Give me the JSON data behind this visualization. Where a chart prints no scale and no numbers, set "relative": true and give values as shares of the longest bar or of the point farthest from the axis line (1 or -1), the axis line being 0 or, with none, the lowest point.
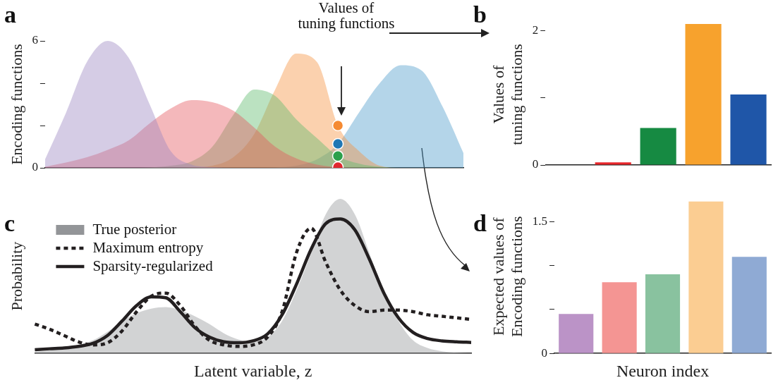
{
  "chart_data": [
    {
      "type": "area",
      "title": "a",
      "ylabel": "Encoding functions",
      "annotations": [
        "Values of\ntuning functions"
      ],
      "categories": [
        null,
        null,
        null,
        null,
        null,
        null,
        null,
        null,
        null,
        null,
        null,
        null,
        null,
        null,
        null,
        null,
        null,
        null,
        null,
        null,
        null
      ],
      "ylim": [
        0,
        6
      ],
      "yticks": [
        0,
        {
          "value": 2,
          "label": null
        },
        {
          "value": 4,
          "label": null
        },
        6
      ],
      "tick_labels": "y",
      "series": [
        {
          "color": "#9a86c0",
          "values": [
            0.4,
            2.6,
            5.0,
            6.0,
            5.2,
            3.0,
            0.8,
            0.15,
            0.03,
            0,
            0,
            0,
            0,
            0,
            0,
            0,
            0,
            0,
            0,
            0,
            0
          ]
        },
        {
          "color": "#e5565e",
          "values": [
            0.05,
            0.25,
            0.5,
            0.85,
            1.3,
            2.1,
            2.8,
            3.2,
            3.1,
            2.7,
            1.9,
            1.0,
            0.45,
            0.15,
            0.03,
            0,
            0,
            0,
            0,
            0,
            0
          ]
        },
        {
          "color": "#5dbb6b",
          "values": [
            0,
            0,
            0,
            0,
            0,
            0.02,
            0.1,
            0.3,
            1.0,
            2.5,
            3.7,
            3.4,
            2.3,
            1.4,
            0.56,
            0.2,
            0.05,
            0,
            0,
            0,
            0
          ]
        },
        {
          "color": "#f6913f",
          "values": [
            0,
            0,
            0,
            0,
            0,
            0,
            0,
            0.02,
            0.1,
            0.5,
            1.6,
            3.7,
            5.4,
            5.0,
            2.0,
            0.8,
            0.1,
            0,
            0,
            0,
            0
          ]
        },
        {
          "color": "#4d9acb",
          "values": [
            0,
            0,
            0,
            0,
            0,
            0,
            0,
            0,
            0,
            0,
            0,
            0.02,
            0.1,
            0.4,
            1.13,
            2.6,
            4.0,
            4.85,
            4.6,
            2.9,
            0.7
          ]
        },
        {
          "type": "scatter",
          "color": "#f58a32",
          "values": [
            null,
            null,
            null,
            null,
            null,
            null,
            null,
            null,
            null,
            null,
            null,
            null,
            null,
            null,
            2.0,
            null,
            null,
            null,
            null,
            null,
            null
          ]
        },
        {
          "type": "scatter",
          "color": "#1f77b4",
          "values": [
            null,
            null,
            null,
            null,
            null,
            null,
            null,
            null,
            null,
            null,
            null,
            null,
            null,
            null,
            1.13,
            null,
            null,
            null,
            null,
            null,
            null
          ]
        },
        {
          "type": "scatter",
          "color": "#2ca04c",
          "values": [
            null,
            null,
            null,
            null,
            null,
            null,
            null,
            null,
            null,
            null,
            null,
            null,
            null,
            null,
            0.56,
            null,
            null,
            null,
            null,
            null,
            null
          ]
        },
        {
          "type": "scatter",
          "color": "#e0282f",
          "values": [
            null,
            null,
            null,
            null,
            null,
            null,
            null,
            null,
            null,
            null,
            null,
            null,
            null,
            null,
            0.03,
            null,
            null,
            null,
            null,
            null,
            null
          ]
        }
      ]
    },
    {
      "type": "bar",
      "title": "b",
      "ylabel": "Values of\ntuning functions",
      "categories": [
        null,
        null,
        null,
        null,
        null
      ],
      "values": [
        0,
        0.04,
        0.55,
        2.1,
        1.05
      ],
      "colors": [
        "#bb93c7",
        "#e8262b",
        "#168a42",
        "#f7a22d",
        "#1f56a8"
      ],
      "ylim": [
        0,
        2.1
      ],
      "yticks": [
        0,
        {
          "value": 1,
          "label": null
        },
        2
      ],
      "tick_labels": "y"
    },
    {
      "type": "area",
      "title": "c",
      "xlabel": "Latent variable, z",
      "ylabel": "Probability",
      "relative": true,
      "legend": "top left",
      "tick_labels": false,
      "categories": [
        null,
        null,
        null,
        null,
        null,
        null,
        null,
        null,
        null,
        null,
        null,
        null,
        null,
        null,
        null,
        null,
        null,
        null,
        null,
        null,
        null,
        null,
        null,
        null,
        null,
        null,
        null,
        null,
        null,
        null,
        null
      ],
      "series": [
        {
          "name": "True posterior",
          "color": "#939598",
          "values": [
            0.01,
            0.02,
            0.035,
            0.055,
            0.085,
            0.14,
            0.21,
            0.26,
            0.29,
            0.3,
            0.28,
            0.24,
            0.19,
            0.13,
            0.09,
            0.075,
            0.105,
            0.21,
            0.41,
            0.65,
            0.9,
            1.0,
            0.9,
            0.65,
            0.39,
            0.21,
            0.085,
            0.035,
            0.014,
            0.004,
            0
          ]
        },
        {
          "name": "Maximum entropy",
          "type": "line",
          "line_style": "dotted",
          "color": "#231f20",
          "values": [
            0.19,
            0.157,
            0.116,
            0.075,
            0.055,
            0.069,
            0.146,
            0.27,
            0.37,
            0.39,
            0.31,
            0.177,
            0.085,
            0.055,
            0.045,
            0.055,
            0.106,
            0.27,
            0.655,
            0.81,
            0.59,
            0.41,
            0.31,
            0.27,
            0.28,
            0.28,
            0.27,
            0.25,
            0.24,
            0.23,
            0.22
          ]
        },
        {
          "name": "Sparsity-regularized",
          "type": "line",
          "line_style": "solid",
          "color": "#231f20",
          "values": [
            0.024,
            0.03,
            0.035,
            0.045,
            0.065,
            0.116,
            0.21,
            0.31,
            0.366,
            0.36,
            0.27,
            0.167,
            0.106,
            0.075,
            0.069,
            0.081,
            0.126,
            0.25,
            0.45,
            0.675,
            0.84,
            0.87,
            0.8,
            0.61,
            0.39,
            0.23,
            0.136,
            0.096,
            0.081,
            0.075,
            0.071
          ]
        }
      ]
    },
    {
      "type": "bar",
      "title": "d",
      "xlabel": "Neuron index",
      "ylabel": "Expected values of\nEncoding functions",
      "categories": [
        null,
        null,
        null,
        null,
        null
      ],
      "values": [
        0.45,
        0.81,
        0.9,
        1.73,
        1.1
      ],
      "colors": [
        "#bb93c7",
        "#f49593",
        "#89c29f",
        "#fbcd92",
        "#8faad4"
      ],
      "ylim": [
        0,
        1.75
      ],
      "yticks": [
        0,
        {
          "value": 0.5,
          "label": null
        },
        {
          "value": 1,
          "label": null
        },
        1.5
      ],
      "tick_labels": "y"
    }
  ]
}
